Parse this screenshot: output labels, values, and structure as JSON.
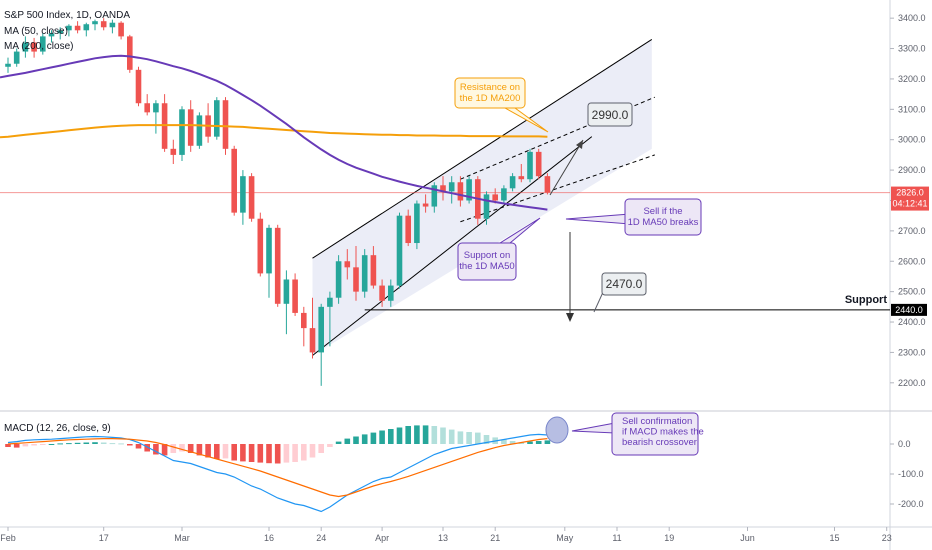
{
  "colors": {
    "up": "#26a69a",
    "down": "#ef5350",
    "ma50": "#673ab7",
    "ma200": "#f59f0a",
    "macd_line": "#2196f3",
    "signal_line": "#ff6d00",
    "hist_pos_strong": "#26a69a",
    "hist_pos_weak": "#b2dfdb",
    "hist_neg_strong": "#ef5350",
    "hist_neg_weak": "#ffcdd2",
    "channel": "#000000",
    "channel_fill": "#c5cae9",
    "current_price_bg": "#ef5350",
    "label_bg": "#000000",
    "label_text": "#ffffff"
  },
  "legend": {
    "symbol": "S&P 500 Index, 1D, OANDA",
    "ma50": "MA (50, close)",
    "ma200": "MA (200, close)",
    "macd": "MACD (12, 26, close, 9)"
  },
  "price_labels": {
    "current": "2826.0",
    "countdown": "04:12:41",
    "support_level": "2440.0",
    "support_text": "Support"
  },
  "annotations": {
    "target_up": "2990.0",
    "target_down": "2470.0",
    "resistance": "Resistance on the 1D MA200",
    "support_ma50": "Support on the 1D MA50",
    "sell_break": "Sell if the 1D MA50 breaks",
    "sell_confirm": "Sell confirmation if MACD makes the bearish crossover"
  },
  "chart_data": {
    "type": "candlestick",
    "title": "S&P 500 Index, 1D, OANDA",
    "price_axis": {
      "ylim": [
        2150,
        3440
      ],
      "ticks": [
        "2200.0",
        "2300.0",
        "2400.0",
        "2500.0",
        "2600.0",
        "2700.0",
        "2800.0",
        "2900.0",
        "3000.0",
        "3100.0",
        "3200.0",
        "3300.0",
        "3400.0"
      ]
    },
    "macd_axis": {
      "ylim": [
        -260,
        90
      ],
      "ticks": [
        "0.0",
        "-100.0",
        "-200.0"
      ]
    },
    "x_axis": {
      "ticks": [
        {
          "label": "Feb",
          "i": 0
        },
        {
          "label": "17",
          "i": 11
        },
        {
          "label": "Mar",
          "i": 20
        },
        {
          "label": "16",
          "i": 30
        },
        {
          "label": "24",
          "i": 36
        },
        {
          "label": "Apr",
          "i": 43
        },
        {
          "label": "13",
          "i": 50
        },
        {
          "label": "21",
          "i": 56
        },
        {
          "label": "May",
          "i": 64
        },
        {
          "label": "11",
          "i": 70
        },
        {
          "label": "19",
          "i": 76
        },
        {
          "label": "Jun",
          "i": 85
        },
        {
          "label": "15",
          "i": 95
        },
        {
          "label": "23",
          "i": 101
        }
      ]
    },
    "candles": [
      [
        3240,
        3270,
        3220,
        3250
      ],
      [
        3250,
        3300,
        3240,
        3290
      ],
      [
        3290,
        3340,
        3270,
        3320
      ],
      [
        3320,
        3335,
        3270,
        3290
      ],
      [
        3290,
        3350,
        3280,
        3340
      ],
      [
        3340,
        3360,
        3320,
        3350
      ],
      [
        3350,
        3370,
        3330,
        3360
      ],
      [
        3360,
        3380,
        3340,
        3375
      ],
      [
        3375,
        3390,
        3350,
        3360
      ],
      [
        3360,
        3385,
        3340,
        3380
      ],
      [
        3380,
        3395,
        3360,
        3390
      ],
      [
        3390,
        3400,
        3360,
        3370
      ],
      [
        3370,
        3395,
        3350,
        3385
      ],
      [
        3385,
        3390,
        3330,
        3340
      ],
      [
        3340,
        3345,
        3220,
        3230
      ],
      [
        3230,
        3240,
        3110,
        3120
      ],
      [
        3120,
        3150,
        3080,
        3090
      ],
      [
        3090,
        3130,
        3020,
        3120
      ],
      [
        3120,
        3150,
        2960,
        2970
      ],
      [
        2970,
        3000,
        2920,
        2950
      ],
      [
        2950,
        3110,
        2930,
        3100
      ],
      [
        3100,
        3130,
        2960,
        2980
      ],
      [
        2980,
        3090,
        2970,
        3080
      ],
      [
        3080,
        3120,
        2990,
        3010
      ],
      [
        3010,
        3140,
        3000,
        3130
      ],
      [
        3130,
        3140,
        2950,
        2970
      ],
      [
        2970,
        2980,
        2750,
        2760
      ],
      [
        2760,
        2900,
        2720,
        2880
      ],
      [
        2880,
        2890,
        2730,
        2740
      ],
      [
        2740,
        2760,
        2550,
        2560
      ],
      [
        2560,
        2720,
        2480,
        2710
      ],
      [
        2710,
        2720,
        2450,
        2460
      ],
      [
        2460,
        2570,
        2360,
        2540
      ],
      [
        2540,
        2560,
        2420,
        2430
      ],
      [
        2430,
        2450,
        2320,
        2380
      ],
      [
        2380,
        2480,
        2280,
        2300
      ],
      [
        2300,
        2460,
        2190,
        2450
      ],
      [
        2450,
        2500,
        2320,
        2480
      ],
      [
        2480,
        2620,
        2460,
        2600
      ],
      [
        2600,
        2640,
        2540,
        2580
      ],
      [
        2580,
        2650,
        2470,
        2500
      ],
      [
        2500,
        2640,
        2480,
        2620
      ],
      [
        2620,
        2650,
        2510,
        2520
      ],
      [
        2520,
        2540,
        2450,
        2470
      ],
      [
        2470,
        2540,
        2450,
        2520
      ],
      [
        2520,
        2760,
        2510,
        2750
      ],
      [
        2750,
        2770,
        2650,
        2660
      ],
      [
        2660,
        2800,
        2640,
        2790
      ],
      [
        2790,
        2820,
        2760,
        2780
      ],
      [
        2780,
        2860,
        2760,
        2850
      ],
      [
        2850,
        2880,
        2800,
        2830
      ],
      [
        2830,
        2880,
        2790,
        2860
      ],
      [
        2860,
        2880,
        2780,
        2800
      ],
      [
        2800,
        2880,
        2790,
        2870
      ],
      [
        2870,
        2880,
        2720,
        2740
      ],
      [
        2740,
        2830,
        2720,
        2820
      ],
      [
        2820,
        2840,
        2790,
        2800
      ],
      [
        2800,
        2850,
        2790,
        2840
      ],
      [
        2840,
        2890,
        2830,
        2880
      ],
      [
        2880,
        2920,
        2860,
        2870
      ],
      [
        2870,
        2970,
        2860,
        2960
      ],
      [
        2960,
        2970,
        2870,
        2880
      ],
      [
        2880,
        2890,
        2820,
        2826
      ]
    ],
    "macd_hist": [
      -10,
      -12,
      -8,
      -5,
      -3,
      0,
      2,
      3,
      4,
      5,
      6,
      5,
      3,
      2,
      -5,
      -15,
      -25,
      -35,
      -38,
      -30,
      -25,
      -30,
      -38,
      -45,
      -50,
      -48,
      -55,
      -58,
      -60,
      -62,
      -64,
      -65,
      -62,
      -60,
      -55,
      -45,
      -30,
      -10,
      8,
      18,
      25,
      32,
      38,
      45,
      50,
      55,
      60,
      62,
      62,
      60,
      55,
      48,
      42,
      40,
      38,
      30,
      22,
      15,
      10,
      5,
      8,
      10,
      12
    ],
    "macd_line": [
      5,
      8,
      12,
      14,
      15,
      16,
      18,
      20,
      22,
      24,
      25,
      24,
      22,
      20,
      15,
      5,
      -10,
      -25,
      -40,
      -55,
      -60,
      -65,
      -75,
      -85,
      -95,
      -100,
      -110,
      -125,
      -140,
      -150,
      -165,
      -180,
      -190,
      -200,
      -205,
      -215,
      -225,
      -210,
      -190,
      -170,
      -155,
      -140,
      -125,
      -115,
      -110,
      -95,
      -80,
      -65,
      -50,
      -35,
      -25,
      -15,
      -10,
      -5,
      0,
      5,
      10,
      15,
      20,
      25,
      30,
      32,
      30
    ],
    "signal_line": [
      0,
      2,
      4,
      6,
      8,
      10,
      12,
      14,
      15,
      16,
      17,
      18,
      18,
      17,
      16,
      13,
      10,
      5,
      -2,
      -10,
      -18,
      -26,
      -34,
      -42,
      -50,
      -58,
      -66,
      -74,
      -82,
      -90,
      -100,
      -110,
      -120,
      -130,
      -140,
      -150,
      -160,
      -170,
      -175,
      -170,
      -160,
      -150,
      -140,
      -132,
      -125,
      -117,
      -108,
      -98,
      -88,
      -78,
      -68,
      -58,
      -48,
      -38,
      -28,
      -20,
      -12,
      -5,
      0,
      5,
      10,
      15,
      18
    ],
    "ma50": [
      3210,
      3215,
      3220,
      3226,
      3232,
      3238,
      3244,
      3250,
      3256,
      3262,
      3268,
      3272,
      3275,
      3276,
      3274,
      3270,
      3265,
      3258,
      3250,
      3242,
      3235,
      3226,
      3216,
      3205,
      3194,
      3180,
      3164,
      3147,
      3130,
      3112,
      3092,
      3072,
      3052,
      3030,
      3008,
      2988,
      2968,
      2950,
      2934,
      2920,
      2908,
      2898,
      2888,
      2878,
      2870,
      2862,
      2855,
      2848,
      2842,
      2836,
      2830,
      2824,
      2818,
      2812,
      2806,
      2800,
      2795,
      2790,
      2786,
      2782,
      2778,
      2774,
      2770
    ],
    "ma200": [
      3010,
      3013,
      3016,
      3019,
      3022,
      3025,
      3028,
      3031,
      3034,
      3037,
      3040,
      3042,
      3044,
      3046,
      3047,
      3048,
      3048,
      3048,
      3048,
      3048,
      3048,
      3048,
      3047,
      3046,
      3045,
      3044,
      3043,
      3042,
      3040,
      3038,
      3036,
      3034,
      3032,
      3030,
      3028,
      3026,
      3024,
      3022,
      3021,
      3020,
      3019,
      3018,
      3017,
      3016,
      3016,
      3015,
      3015,
      3014,
      3014,
      3014,
      3013,
      3013,
      3013,
      3012,
      3012,
      3012,
      3012,
      3011,
      3011,
      3011,
      3011,
      3011,
      3010
    ]
  }
}
